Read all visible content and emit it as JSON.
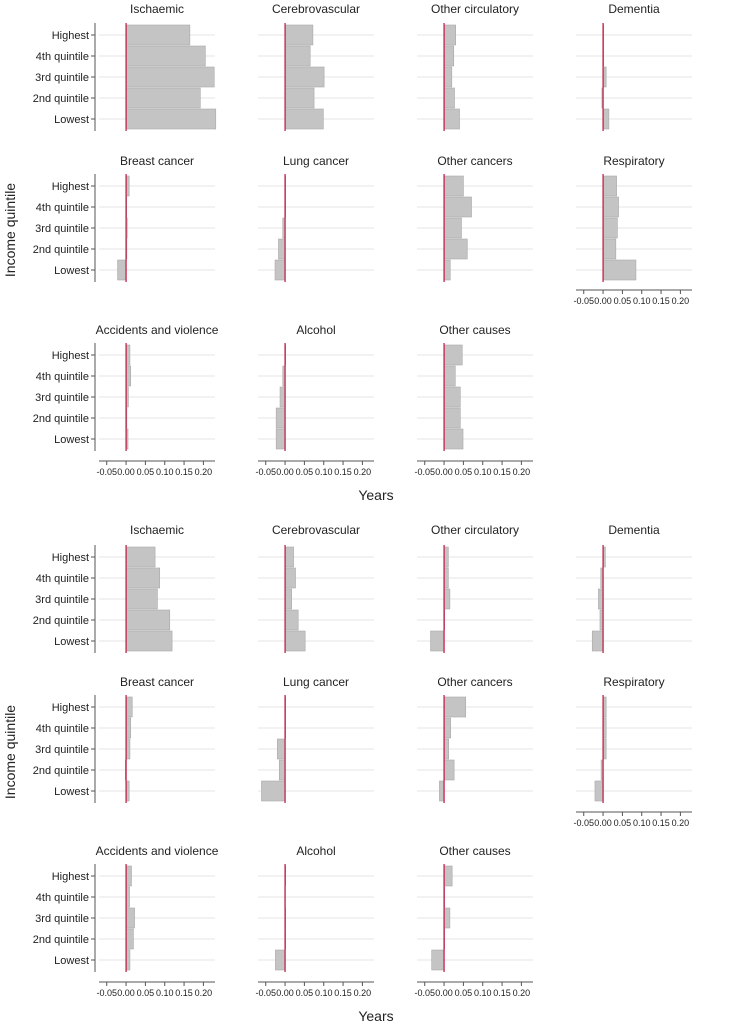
{
  "colors": {
    "bar": "#c4c4c4",
    "bar_edge": "#a9a9a9",
    "zero_line": "#c0143c",
    "axis": "#555555",
    "grid": "#e6e6e6"
  },
  "chart_data": [
    {
      "type": "bar",
      "orientation": "horizontal",
      "xlabel": "Years",
      "ylabel": "Income quintile",
      "xlim": [
        -0.07,
        0.23
      ],
      "xticks": [
        "-0.05",
        "0.00",
        "0.05",
        "0.10",
        "0.15",
        "0.20"
      ],
      "categories": [
        "Highest",
        "4th quintile",
        "3rd quintile",
        "2nd quintile",
        "Lowest"
      ],
      "panels": [
        {
          "title": "Ischaemic",
          "values": [
            0.165,
            0.205,
            0.228,
            0.192,
            0.232
          ]
        },
        {
          "title": "Cerebrovascular",
          "values": [
            0.072,
            0.065,
            0.101,
            0.075,
            0.099
          ]
        },
        {
          "title": "Other circulatory",
          "values": [
            0.03,
            0.025,
            0.02,
            0.027,
            0.04
          ]
        },
        {
          "title": "Dementia",
          "values": [
            0.0,
            0.0,
            0.008,
            -0.003,
            0.015
          ]
        },
        {
          "title": "Breast cancer",
          "values": [
            0.008,
            0.0,
            0.003,
            0.002,
            -0.022
          ]
        },
        {
          "title": "Lung cancer",
          "values": [
            0.0,
            0.0,
            -0.006,
            -0.017,
            -0.026
          ]
        },
        {
          "title": "Other cancers",
          "values": [
            0.05,
            0.071,
            0.045,
            0.06,
            0.016
          ]
        },
        {
          "title": "Respiratory",
          "values": [
            0.035,
            0.04,
            0.037,
            0.033,
            0.085
          ]
        },
        {
          "title": "Accidents and violence",
          "values": [
            0.01,
            0.012,
            0.006,
            0.002,
            0.005
          ]
        },
        {
          "title": "Alcohol",
          "values": [
            0.0,
            -0.006,
            -0.013,
            -0.023,
            -0.023
          ]
        },
        {
          "title": "Other causes",
          "values": [
            0.047,
            0.029,
            0.042,
            0.042,
            0.049
          ]
        }
      ]
    },
    {
      "type": "bar",
      "orientation": "horizontal",
      "xlabel": "Years",
      "ylabel": "Income quintile",
      "xlim": [
        -0.07,
        0.23
      ],
      "xticks": [
        "-0.05",
        "0.00",
        "0.05",
        "0.10",
        "0.15",
        "0.20"
      ],
      "categories": [
        "Highest",
        "4th quintile",
        "3rd quintile",
        "2nd quintile",
        "Lowest"
      ],
      "panels": [
        {
          "title": "Ischaemic",
          "values": [
            0.075,
            0.087,
            0.081,
            0.113,
            0.119
          ]
        },
        {
          "title": "Cerebrovascular",
          "values": [
            0.022,
            0.027,
            0.017,
            0.034,
            0.052
          ]
        },
        {
          "title": "Other circulatory",
          "values": [
            0.011,
            0.011,
            0.015,
            0.0,
            -0.035
          ]
        },
        {
          "title": "Dementia",
          "values": [
            0.006,
            -0.006,
            -0.012,
            -0.008,
            -0.028
          ]
        },
        {
          "title": "Breast cancer",
          "values": [
            0.016,
            0.012,
            0.01,
            -0.002,
            0.008
          ]
        },
        {
          "title": "Lung cancer",
          "values": [
            0.0,
            0.0,
            -0.02,
            -0.015,
            -0.061
          ]
        },
        {
          "title": "Other cancers",
          "values": [
            0.056,
            0.017,
            0.012,
            0.026,
            -0.012
          ]
        },
        {
          "title": "Respiratory",
          "values": [
            0.008,
            0.008,
            0.008,
            -0.005,
            -0.021
          ]
        },
        {
          "title": "Accidents and violence",
          "values": [
            0.014,
            0.009,
            0.022,
            0.019,
            0.01
          ]
        },
        {
          "title": "Alcohol",
          "values": [
            0.0,
            -0.001,
            0.0,
            0.0,
            -0.025
          ]
        },
        {
          "title": "Other causes",
          "values": [
            0.021,
            0.0,
            0.015,
            0.0,
            -0.032
          ]
        }
      ]
    }
  ]
}
